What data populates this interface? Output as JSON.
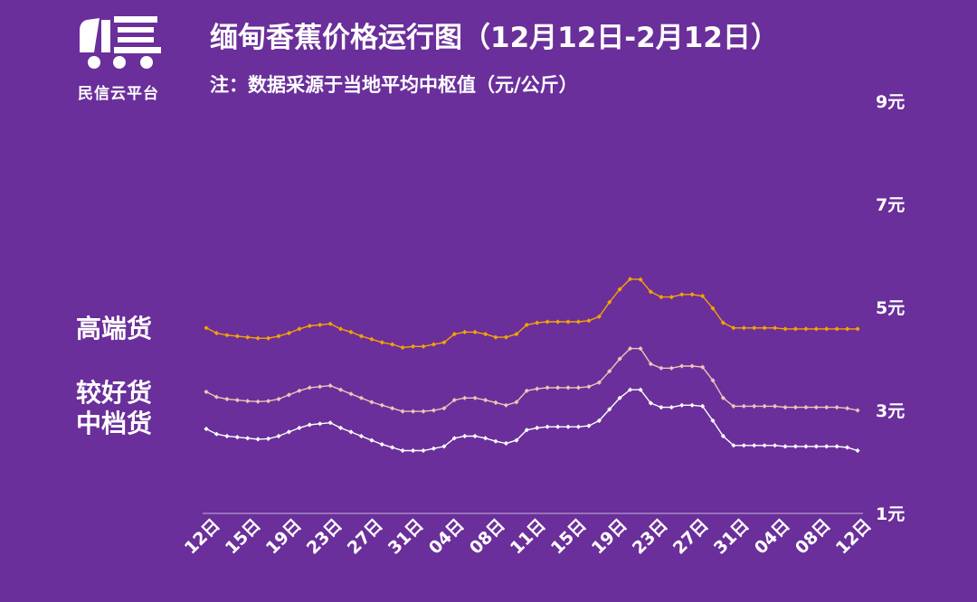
{
  "logo": {
    "text": "民信云平台",
    "icon": "truck-icon"
  },
  "header": {
    "title": "缅甸香蕉价格运行图（12月12日-2月12日）",
    "subtitle": "注：数据采源于当地平均中枢值（元/公斤）"
  },
  "colors": {
    "background": "#6a2f9a",
    "high": "#f5a300",
    "good": "#f3c2b8",
    "mid": "#ffffff",
    "axis": "#c9b2dd"
  },
  "chart_data": {
    "type": "line",
    "title": "缅甸香蕉价格运行图（12月12日-2月12日）",
    "ylabel": "元/公斤",
    "ylim": [
      1,
      9
    ],
    "yticks": [
      1,
      3,
      5,
      7,
      9
    ],
    "ytick_labels": [
      "1元",
      "3元",
      "5元",
      "7元",
      "9元"
    ],
    "grid": false,
    "legend_placement": "left",
    "x_tick_labels": [
      "12日",
      "15日",
      "19日",
      "23日",
      "27日",
      "31日",
      "04日",
      "08日",
      "11日",
      "15日",
      "19日",
      "23日",
      "27日",
      "31日",
      "04日",
      "08日",
      "12日"
    ],
    "series": [
      {
        "name": "高端货",
        "values": [
          4.6,
          4.5,
          4.46,
          4.44,
          4.42,
          4.4,
          4.4,
          4.44,
          4.5,
          4.58,
          4.64,
          4.66,
          4.68,
          4.58,
          4.52,
          4.44,
          4.38,
          4.32,
          4.28,
          4.22,
          4.24,
          4.24,
          4.28,
          4.32,
          4.48,
          4.52,
          4.52,
          4.48,
          4.42,
          4.42,
          4.48,
          4.66,
          4.7,
          4.72,
          4.72,
          4.72,
          4.72,
          4.74,
          4.82,
          5.1,
          5.35,
          5.55,
          5.54,
          5.3,
          5.2,
          5.2,
          5.25,
          5.25,
          5.22,
          4.98,
          4.7,
          4.6,
          4.6,
          4.6,
          4.6,
          4.6,
          4.58,
          4.58,
          4.58,
          4.58,
          4.58,
          4.58,
          4.58,
          4.58
        ]
      },
      {
        "name": "较好货",
        "values": [
          3.36,
          3.26,
          3.22,
          3.2,
          3.18,
          3.17,
          3.18,
          3.22,
          3.3,
          3.38,
          3.44,
          3.46,
          3.48,
          3.4,
          3.32,
          3.24,
          3.16,
          3.1,
          3.04,
          2.98,
          2.98,
          2.98,
          3.0,
          3.04,
          3.2,
          3.24,
          3.24,
          3.2,
          3.15,
          3.1,
          3.16,
          3.38,
          3.42,
          3.44,
          3.44,
          3.44,
          3.44,
          3.46,
          3.54,
          3.76,
          4.0,
          4.2,
          4.2,
          3.9,
          3.82,
          3.82,
          3.86,
          3.86,
          3.84,
          3.58,
          3.24,
          3.08,
          3.08,
          3.08,
          3.08,
          3.08,
          3.06,
          3.06,
          3.06,
          3.06,
          3.06,
          3.06,
          3.04,
          3.0
        ]
      },
      {
        "name": "中档货",
        "values": [
          2.64,
          2.54,
          2.5,
          2.48,
          2.46,
          2.44,
          2.45,
          2.5,
          2.58,
          2.66,
          2.72,
          2.74,
          2.76,
          2.66,
          2.58,
          2.5,
          2.42,
          2.34,
          2.28,
          2.22,
          2.22,
          2.22,
          2.26,
          2.3,
          2.46,
          2.5,
          2.5,
          2.46,
          2.4,
          2.36,
          2.42,
          2.62,
          2.66,
          2.68,
          2.68,
          2.68,
          2.68,
          2.7,
          2.8,
          3.02,
          3.24,
          3.4,
          3.4,
          3.14,
          3.06,
          3.06,
          3.1,
          3.1,
          3.08,
          2.8,
          2.5,
          2.32,
          2.32,
          2.32,
          2.32,
          2.32,
          2.3,
          2.3,
          2.3,
          2.3,
          2.3,
          2.3,
          2.28,
          2.22
        ]
      }
    ]
  }
}
